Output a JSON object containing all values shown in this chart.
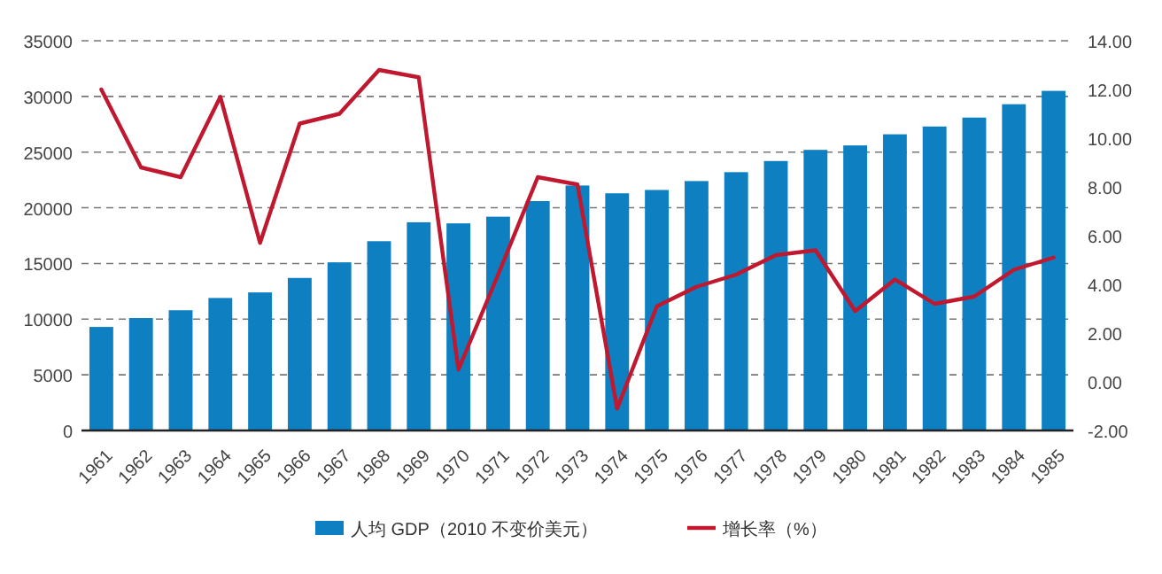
{
  "chart_data": {
    "type": "bar",
    "categories": [
      "1961",
      "1962",
      "1963",
      "1964",
      "1965",
      "1966",
      "1967",
      "1968",
      "1969",
      "1970",
      "1971",
      "1972",
      "1973",
      "1974",
      "1975",
      "1976",
      "1977",
      "1978",
      "1979",
      "1980",
      "1981",
      "1982",
      "1983",
      "1984",
      "1985"
    ],
    "series": [
      {
        "name": "人均 GDP（2010 不变价美元）",
        "color": "#0e7fc1",
        "values": [
          9300,
          10100,
          10800,
          11900,
          12400,
          13700,
          15100,
          17000,
          18700,
          18600,
          19200,
          20600,
          22000,
          21300,
          21600,
          22400,
          23200,
          24200,
          25200,
          25600,
          26600,
          27300,
          28100,
          29300,
          30500
        ]
      },
      {
        "name": "增长率（%）",
        "type": "line",
        "axis": "y2",
        "color": "#c0182e",
        "values": [
          12.0,
          8.8,
          8.4,
          11.7,
          5.7,
          10.6,
          11.0,
          12.8,
          12.5,
          0.5,
          4.4,
          8.4,
          8.1,
          -1.1,
          3.1,
          3.9,
          4.4,
          5.2,
          5.4,
          2.9,
          4.2,
          3.2,
          3.5,
          4.6,
          5.1
        ]
      }
    ],
    "ylim": [
      0,
      35000
    ],
    "yticks": [
      0,
      5000,
      10000,
      15000,
      20000,
      25000,
      30000,
      35000
    ],
    "y2lim": [
      -2,
      14
    ],
    "y2ticks": [
      {
        "value": -2,
        "label": "-2.00"
      },
      {
        "value": 0,
        "label": "0.00"
      },
      {
        "value": 2,
        "label": "2.00"
      },
      {
        "value": 4,
        "label": "4.00"
      },
      {
        "value": 6,
        "label": "6.00"
      },
      {
        "value": 8,
        "label": "8.00"
      },
      {
        "value": 10,
        "label": "10.00"
      },
      {
        "value": 12,
        "label": "12.00"
      },
      {
        "value": 14,
        "label": "14.00"
      }
    ],
    "grid": "y",
    "legend": "bottom"
  }
}
